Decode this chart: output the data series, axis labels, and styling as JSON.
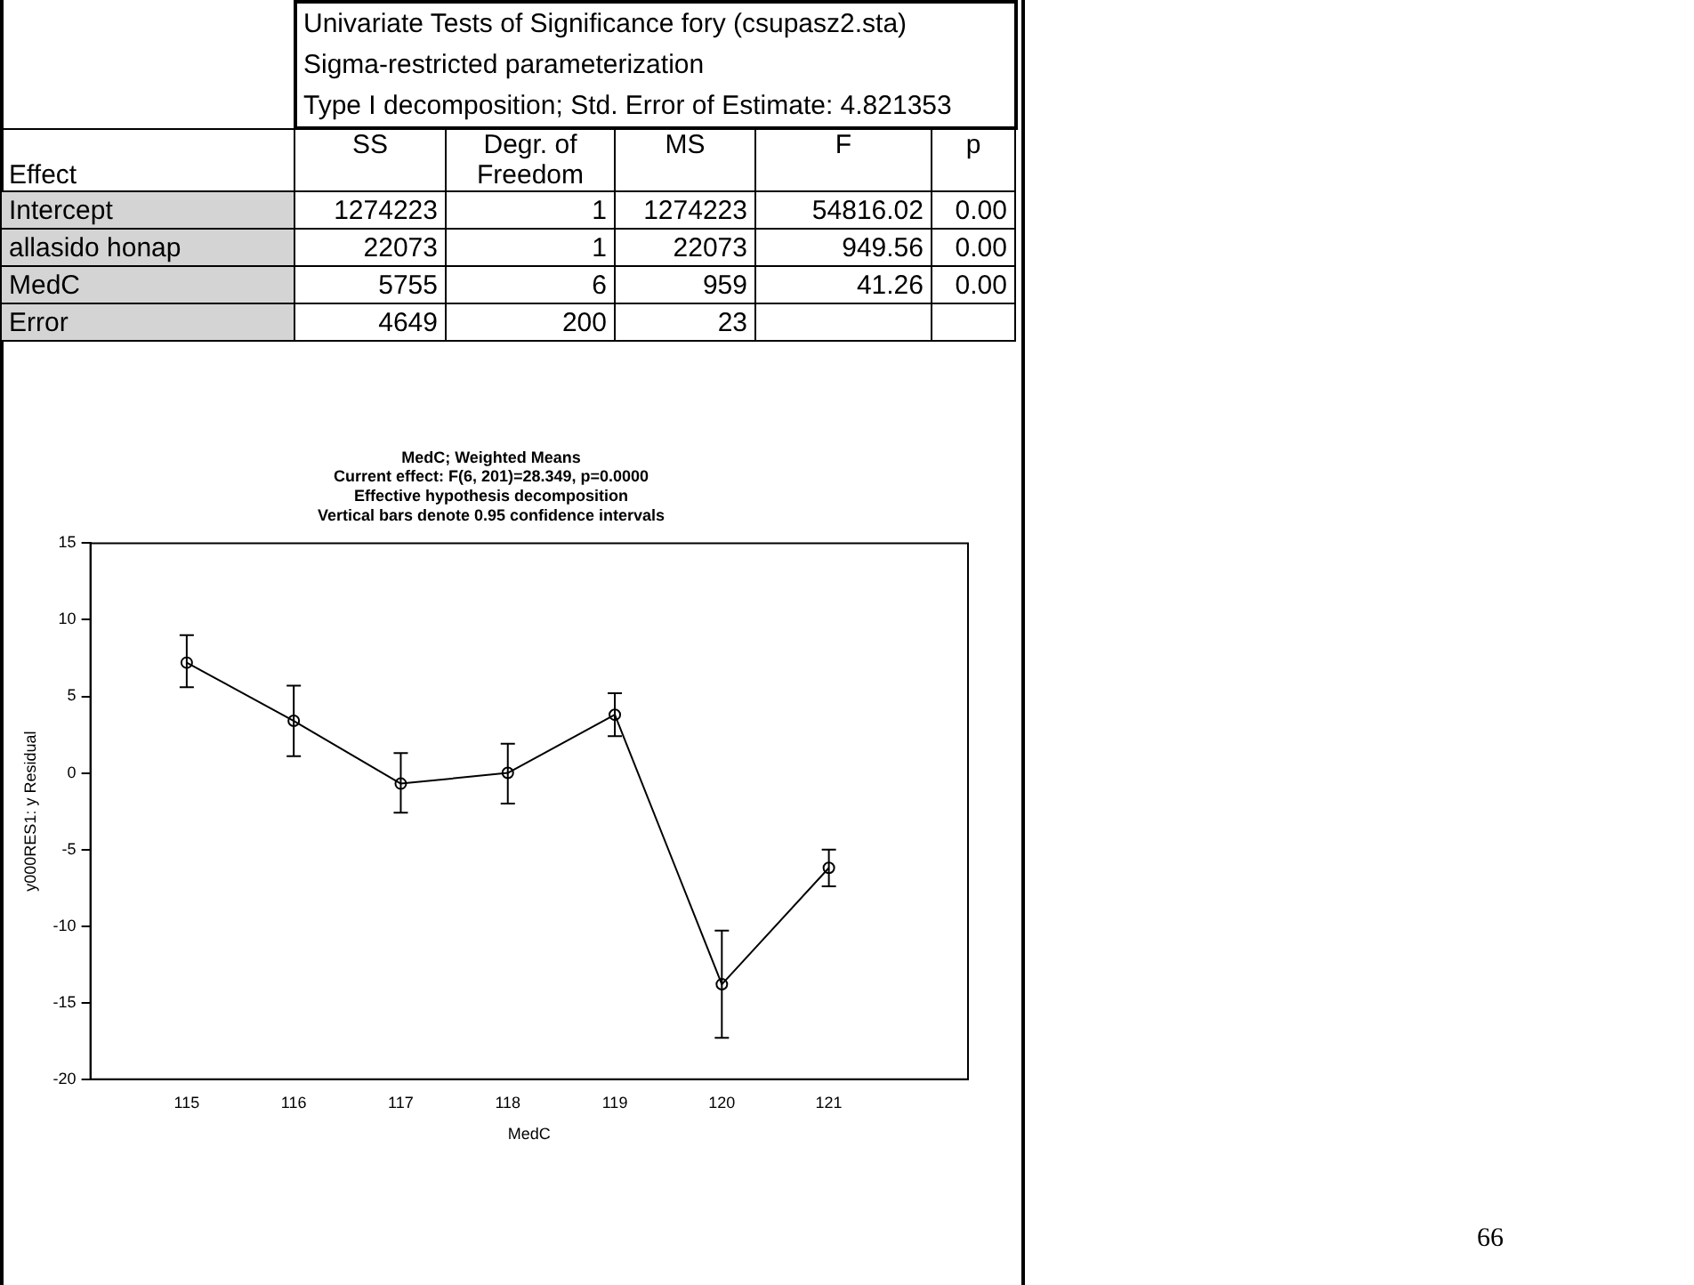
{
  "chart_data": [
    {
      "type": "other",
      "title": "Univariate Tests of Significance fory (csupasz2.sta)",
      "subtitle": "Sigma-restricted parameterization\nType I decomposition; Std. Error of Estimate: 4.821353",
      "categories": [
        "Effect",
        "SS",
        "Degr. of\nFreedom",
        "MS",
        "F",
        "p"
      ],
      "y_categories": [
        "Intercept",
        "allasido honap",
        "MedC",
        "Error"
      ],
      "cell_labels": [
        [
          "1274223",
          "1",
          "1274223",
          "54816.02",
          "0.00"
        ],
        [
          "22073",
          "1",
          "22073",
          "949.56",
          "0.00"
        ],
        [
          "5755",
          "6",
          "959",
          "41.26",
          "0.00"
        ],
        [
          "4649",
          "200",
          "23",
          null,
          null
        ]
      ],
      "annotations": [
        "66"
      ]
    },
    {
      "type": "line",
      "title": "MedC; Weighted Means",
      "subtitle": "Current effect: F(6, 201)=28.349, p=0.0000\nEffective hypothesis decomposition\nVertical bars denote 0.95 confidence intervals",
      "xlabel": "MedC",
      "ylabel": "y000RES1: y Residual",
      "x": [
        115,
        116,
        117,
        118,
        119,
        120,
        121
      ],
      "series": [
        {
          "color": "#000000",
          "values": [
            7.2,
            3.4,
            -0.7,
            0.0,
            3.8,
            -13.8,
            -6.2
          ],
          "errors": [
            [
              5.6,
              9.0
            ],
            [
              1.1,
              5.7
            ],
            [
              -2.6,
              1.3
            ],
            [
              -2.0,
              1.9
            ],
            [
              2.4,
              5.2
            ],
            [
              -17.3,
              -10.3
            ],
            [
              -7.4,
              -5.0
            ]
          ]
        }
      ],
      "xlim": [
        114.1,
        122.3
      ],
      "xticks": [
        115,
        116,
        117,
        118,
        119,
        120,
        121
      ],
      "ylim": [
        -20,
        15
      ],
      "yticks": [
        -20,
        -15,
        -10,
        -5,
        0,
        5,
        10,
        15
      ],
      "grid": false,
      "legend": false,
      "marker": "circle",
      "line_style": "solid"
    }
  ]
}
